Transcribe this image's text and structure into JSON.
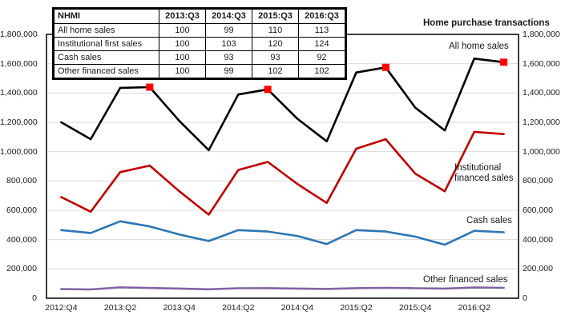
{
  "title": "Home purchase transactions",
  "colors": {
    "all_home": "#000000",
    "institutional": "#C00000",
    "cash": "#2E75B6",
    "other": "#8064A2",
    "marker": "#FF0000",
    "gridline": "#D9D9D9",
    "plot_border": "#000000"
  },
  "index_table": {
    "header": [
      "NHMI",
      "2013:Q3",
      "2014:Q3",
      "2015:Q3",
      "2016:Q3"
    ],
    "rows": [
      {
        "label": "All home sales",
        "values": [
          "100",
          "99",
          "110",
          "113"
        ]
      },
      {
        "label": "Institutional first sales",
        "values": [
          "100",
          "103",
          "120",
          "124"
        ]
      },
      {
        "label": "Cash sales",
        "values": [
          "100",
          "93",
          "93",
          "92"
        ]
      },
      {
        "label": "Other financed sales",
        "values": [
          "100",
          "99",
          "102",
          "102"
        ]
      }
    ]
  },
  "chart_data": {
    "type": "line",
    "title": "Home purchase transactions",
    "categories": [
      "2012:Q4",
      "2013:Q1",
      "2013:Q2",
      "2013:Q3",
      "2013:Q4",
      "2014:Q1",
      "2014:Q2",
      "2014:Q3",
      "2014:Q4",
      "2015:Q1",
      "2015:Q2",
      "2015:Q3",
      "2015:Q4",
      "2016:Q1",
      "2016:Q2",
      "2016:Q3"
    ],
    "x_ticks": [
      {
        "i": 0,
        "label": "2012:Q4"
      },
      {
        "i": 2,
        "label": "2013:Q2"
      },
      {
        "i": 4,
        "label": "2013:Q4"
      },
      {
        "i": 6,
        "label": "2014:Q2"
      },
      {
        "i": 8,
        "label": "2014:Q4"
      },
      {
        "i": 10,
        "label": "2015:Q2"
      },
      {
        "i": 12,
        "label": "2015:Q4"
      },
      {
        "i": 14,
        "label": "2016:Q2"
      }
    ],
    "ylim": [
      0,
      1800000
    ],
    "y_tick_step": 200000,
    "y_tick_labels": [
      "0",
      "200,000",
      "400,000",
      "600,000",
      "800,000",
      "1,000,000",
      "1,200,000",
      "1,400,000",
      "1,600,000",
      "1,800,000"
    ],
    "grid": "horizontal gridlines on, axis labels on both sides, black plot border",
    "series": [
      {
        "name": "All home sales",
        "color_key": "all_home",
        "marker_indices": [
          3,
          7,
          11,
          15
        ],
        "values": [
          1200000,
          1085000,
          1435000,
          1440000,
          1210000,
          1010000,
          1390000,
          1425000,
          1225000,
          1070000,
          1540000,
          1575000,
          1300000,
          1145000,
          1635000,
          1610000
        ]
      },
      {
        "name": "Institutional financed sales",
        "color_key": "institutional",
        "marker_indices": [],
        "values": [
          690000,
          590000,
          860000,
          905000,
          730000,
          570000,
          875000,
          930000,
          780000,
          650000,
          1020000,
          1085000,
          850000,
          730000,
          1135000,
          1120000
        ]
      },
      {
        "name": "Cash sales",
        "color_key": "cash",
        "marker_indices": [],
        "values": [
          465000,
          445000,
          525000,
          490000,
          435000,
          390000,
          465000,
          455000,
          425000,
          370000,
          465000,
          455000,
          420000,
          365000,
          460000,
          450000
        ]
      },
      {
        "name": "Other financed sales",
        "color_key": "other",
        "marker_indices": [],
        "values": [
          62000,
          60000,
          74000,
          70000,
          66000,
          61000,
          68000,
          69000,
          66000,
          63000,
          69000,
          71000,
          68000,
          66000,
          73000,
          71000
        ]
      }
    ]
  }
}
